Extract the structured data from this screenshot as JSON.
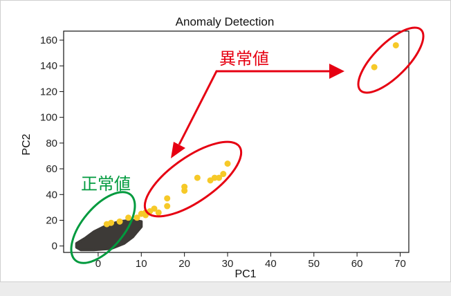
{
  "chart_data": {
    "type": "scatter",
    "title": "Anomaly Detection",
    "xlabel": "PC1",
    "ylabel": "PC2",
    "xlim": [
      -8,
      72
    ],
    "ylim": [
      -5,
      167
    ],
    "xticks": [
      0,
      10,
      20,
      30,
      40,
      50,
      60,
      70
    ],
    "yticks": [
      0,
      20,
      40,
      60,
      80,
      100,
      120,
      140,
      160
    ],
    "grid": false,
    "series": [
      {
        "color": "#3d3a37",
        "description": "dense cluster",
        "x_range": [
          -5,
          10
        ],
        "y_range": [
          -3,
          20
        ]
      },
      {
        "color": "#f6c928",
        "points": [
          [
            2,
            17
          ],
          [
            3,
            18
          ],
          [
            5,
            19
          ],
          [
            7,
            22
          ],
          [
            9,
            22
          ],
          [
            10,
            25
          ],
          [
            11,
            26
          ],
          [
            11,
            24
          ],
          [
            12,
            27
          ],
          [
            13,
            29
          ],
          [
            14,
            26
          ],
          [
            16,
            31
          ],
          [
            16,
            37
          ],
          [
            20,
            43
          ],
          [
            20,
            46
          ],
          [
            23,
            53
          ],
          [
            26,
            51
          ],
          [
            27,
            53
          ],
          [
            28,
            53
          ],
          [
            29,
            56
          ],
          [
            30,
            64
          ],
          [
            64,
            139
          ],
          [
            69,
            156
          ]
        ]
      }
    ],
    "annotations": [
      {
        "text": "異常値",
        "color": "#e60012"
      },
      {
        "text": "正常値",
        "color": "#009a3e"
      }
    ]
  }
}
